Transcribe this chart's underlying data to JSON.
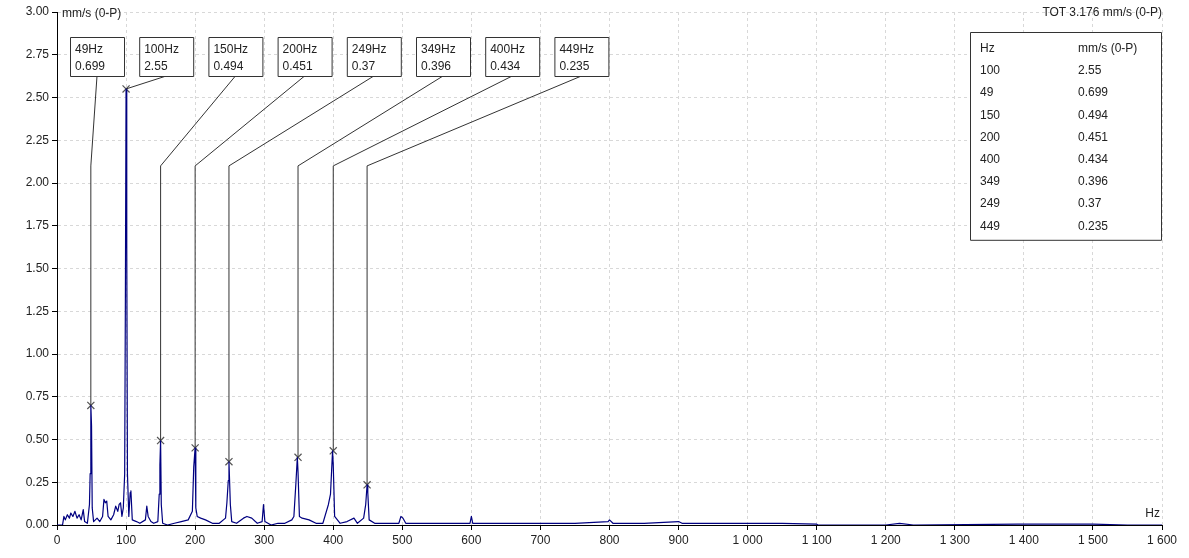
{
  "chart_data": {
    "type": "line",
    "xlabel": "Hz",
    "ylabel": "mm/s (0-P)",
    "xlim": [
      0,
      1600
    ],
    "xticks": [
      0,
      100,
      200,
      300,
      400,
      500,
      600,
      700,
      800,
      900,
      {
        "value": 1000,
        "label": "1 000"
      },
      {
        "value": 1100,
        "label": "1 100"
      },
      {
        "value": 1200,
        "label": "1 200"
      },
      {
        "value": 1300,
        "label": "1 300"
      },
      {
        "value": 1400,
        "label": "1 400"
      },
      {
        "value": 1500,
        "label": "1 500"
      },
      {
        "value": 1600,
        "label": "1 600"
      }
    ],
    "ylim": [
      0,
      3
    ],
    "yticks": [
      {
        "value": 0,
        "label": "0.00"
      },
      {
        "value": 0.25,
        "label": "0.25"
      },
      {
        "value": 0.5,
        "label": "0.50"
      },
      {
        "value": 0.75,
        "label": "0.75"
      },
      {
        "value": 1,
        "label": "1.00"
      },
      {
        "value": 1.25,
        "label": "1.25"
      },
      {
        "value": 1.5,
        "label": "1.50"
      },
      {
        "value": 1.75,
        "label": "1.75"
      },
      {
        "value": 2,
        "label": "2.00"
      },
      {
        "value": 2.25,
        "label": "2.25"
      },
      {
        "value": 2.5,
        "label": "2.50"
      },
      {
        "value": 2.75,
        "label": "2.75"
      },
      {
        "value": 3,
        "label": "3.00"
      }
    ],
    "grid": true,
    "legend": false,
    "series": [
      {
        "color": "#000080",
        "marker": "none",
        "x": [
          0,
          8,
          10,
          12,
          15,
          18,
          20,
          23,
          26,
          29,
          32,
          35,
          38,
          40,
          44,
          47,
          48,
          49,
          50,
          51,
          53,
          58,
          62,
          66,
          68,
          70,
          72,
          74,
          78,
          82,
          85,
          88,
          90,
          92,
          94,
          96,
          98,
          99,
          100,
          101,
          102,
          104,
          106,
          107,
          109,
          115,
          120,
          128,
          130,
          132,
          136,
          140,
          146,
          148,
          149,
          150,
          151,
          153,
          160,
          170,
          180,
          190,
          196,
          198,
          200,
          201,
          203,
          208,
          215,
          225,
          235,
          244,
          246,
          248,
          249,
          251,
          253,
          260,
          270,
          275,
          282,
          290,
          297,
          299,
          301,
          310,
          320,
          330,
          340,
          343,
          346,
          348,
          349,
          351,
          355,
          365,
          375,
          385,
          393,
          396,
          399,
          400,
          402,
          410,
          420,
          430,
          435,
          444,
          447,
          449,
          450,
          452,
          460,
          480,
          495,
          498,
          501,
          505,
          550,
          598,
          600,
          602,
          650,
          700,
          750,
          798,
          800,
          805,
          850,
          900,
          905,
          950,
          1000,
          1050,
          1100,
          1102,
          1200,
          1220,
          1240,
          1400,
          1500,
          1550,
          1600
        ],
        "values": [
          0,
          0,
          0.05,
          0.03,
          0.06,
          0.04,
          0.07,
          0.05,
          0.08,
          0.04,
          0.06,
          0.03,
          0.09,
          0.02,
          0.01,
          0.12,
          0.3,
          0.699,
          0.58,
          0.1,
          0.02,
          0.04,
          0.02,
          0.05,
          0.15,
          0.13,
          0.14,
          0.05,
          0.03,
          0.06,
          0.11,
          0.08,
          0.12,
          0.13,
          0.05,
          0.1,
          0.3,
          1.3,
          2.55,
          1.65,
          0.3,
          0.05,
          0.19,
          0.2,
          0.03,
          0.02,
          0.01,
          0.03,
          0.11,
          0.05,
          0.02,
          0.01,
          0.02,
          0.18,
          0.35,
          0.494,
          0.12,
          0.01,
          0,
          0.01,
          0.02,
          0.03,
          0.08,
          0.34,
          0.451,
          0.1,
          0.05,
          0.04,
          0.03,
          0.01,
          0.01,
          0.04,
          0.13,
          0.26,
          0.37,
          0.12,
          0.02,
          0.01,
          0.04,
          0.05,
          0.04,
          0.01,
          0.02,
          0.12,
          0.02,
          0,
          0.01,
          0.01,
          0.03,
          0.05,
          0.25,
          0.396,
          0.31,
          0.05,
          0.04,
          0.03,
          0.01,
          0.01,
          0.12,
          0.18,
          0.434,
          0.35,
          0.05,
          0.01,
          0.02,
          0.04,
          0.01,
          0.04,
          0.12,
          0.235,
          0.19,
          0.03,
          0.01,
          0.01,
          0.01,
          0.05,
          0.04,
          0.01,
          0.01,
          0.01,
          0.05,
          0.01,
          0.01,
          0.01,
          0.01,
          0.02,
          0.03,
          0.01,
          0.01,
          0.02,
          0.01,
          0.01,
          0.01,
          0.01,
          0.005,
          0,
          0,
          0.01,
          0,
          0.005,
          0.005,
          0,
          0
        ]
      },
      {
        "type": "scatter",
        "color": "#555555",
        "marker": "cross",
        "x": [
          49,
          100,
          150,
          200,
          249,
          349,
          400,
          449
        ],
        "values": [
          0.699,
          2.55,
          0.494,
          0.451,
          0.37,
          0.396,
          0.434,
          0.235
        ]
      }
    ],
    "annotations": [
      {
        "text": "49Hz\n0.699",
        "x": 49,
        "y": 0.699
      },
      {
        "text": "100Hz\n2.55",
        "x": 100,
        "y": 2.55
      },
      {
        "text": "150Hz\n0.494",
        "x": 150,
        "y": 0.494
      },
      {
        "text": "200Hz\n0.451",
        "x": 200,
        "y": 0.451
      },
      {
        "text": "249Hz\n0.37",
        "x": 249,
        "y": 0.37
      },
      {
        "text": "349Hz\n0.396",
        "x": 349,
        "y": 0.396
      },
      {
        "text": "400Hz\n0.434",
        "x": 400,
        "y": 0.434
      },
      {
        "text": "449Hz\n0.235",
        "x": 449,
        "y": 0.235
      },
      "TOT 3.176 mm/s (0-P)",
      "Hz\tmm/s (0-P)",
      "100\t2.55",
      "49\t0.699",
      "150\t0.494",
      "200\t0.451",
      "400\t0.434",
      "349\t0.396",
      "249\t0.37",
      "449\t0.235"
    ]
  }
}
